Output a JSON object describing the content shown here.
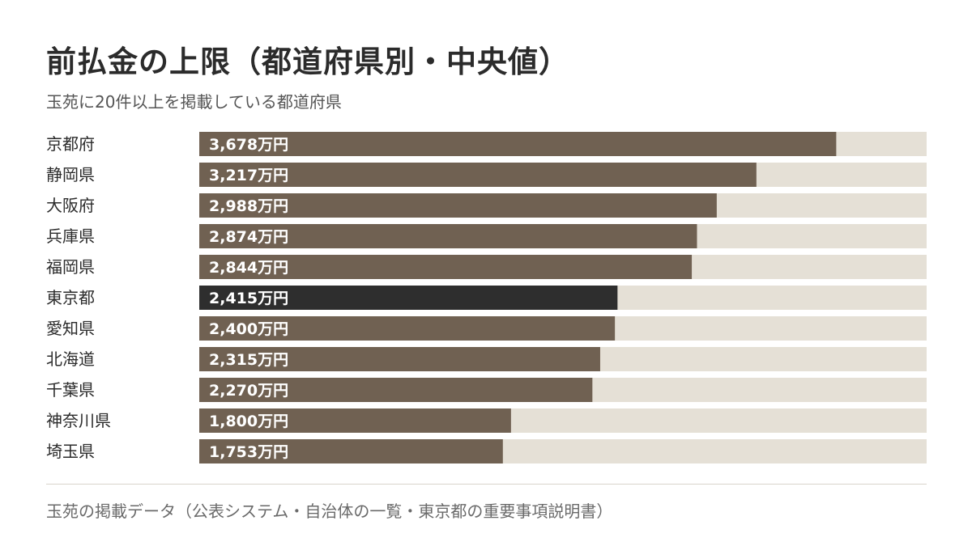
{
  "title": "前払金の上限（都道府県別・中央値）",
  "subtitle": "玉苑に20件以上を掲載している都道府県",
  "source": "玉苑の掲載データ（公表システム・自治体の一覧・東京都の重要事項説明書）",
  "colors": {
    "bar": "#706152",
    "highlight": "#2e2e2e",
    "track": "#e5e0d6"
  },
  "chart_data": {
    "type": "bar",
    "orientation": "horizontal",
    "categories": [
      "京都府",
      "静岡県",
      "大阪府",
      "兵庫県",
      "福岡県",
      "東京都",
      "愛知県",
      "北海道",
      "千葉県",
      "神奈川県",
      "埼玉県"
    ],
    "values": [
      3678,
      3217,
      2988,
      2874,
      2844,
      2415,
      2400,
      2315,
      2270,
      1800,
      1753
    ],
    "value_labels": [
      "3,678万円",
      "3,217万円",
      "2,988万円",
      "2,874万円",
      "2,844万円",
      "2,415万円",
      "2,400万円",
      "2,315万円",
      "2,270万円",
      "1,800万円",
      "1,753万円"
    ],
    "highlight": "東京都",
    "xlim": [
      0,
      4200
    ],
    "grid": false,
    "legend": "none"
  }
}
